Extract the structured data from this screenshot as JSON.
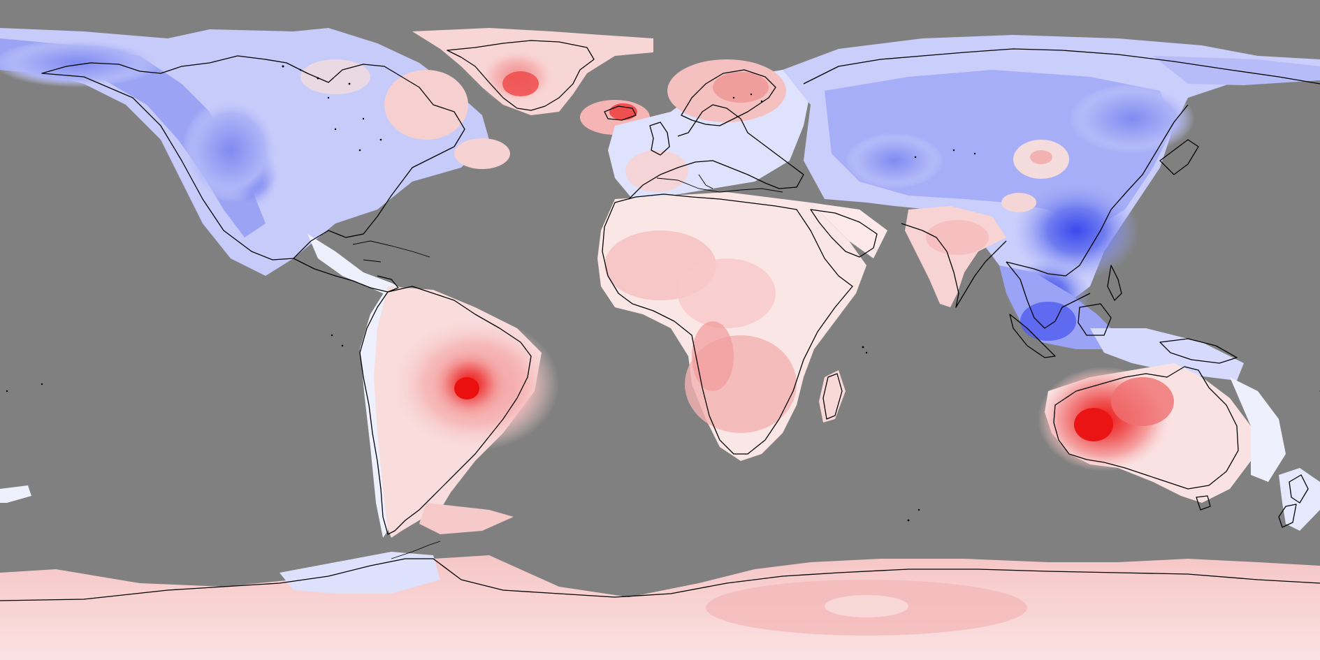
{
  "map": {
    "projection": "equirectangular",
    "view": "world",
    "ocean_color": "#808080",
    "coastline_color": "#000000",
    "palette": {
      "strong_cool": "#3f4ff0",
      "mid_cool": "#8c96f2",
      "light_cool": "#ccd1fb",
      "neutral": "#fdf1f1",
      "light_warm": "#f8c8c8",
      "mid_warm": "#f28888",
      "strong_warm": "#ec1e1e"
    },
    "field_description_hidden": true
  },
  "regions": [
    {
      "name": "north-america",
      "tendency": "cool"
    },
    {
      "name": "greenland",
      "tendency": "warm"
    },
    {
      "name": "south-america",
      "tendency": "warm",
      "hotspot": "central-brazil"
    },
    {
      "name": "africa",
      "tendency": "warm"
    },
    {
      "name": "europe",
      "tendency": "mixed"
    },
    {
      "name": "asia",
      "tendency": "cool"
    },
    {
      "name": "india",
      "tendency": "warm"
    },
    {
      "name": "southeast-asia",
      "tendency": "cool"
    },
    {
      "name": "australia",
      "tendency": "warm",
      "hotspot": "western-australia"
    },
    {
      "name": "new-zealand",
      "tendency": "cool"
    },
    {
      "name": "antarctica",
      "tendency": "warm"
    }
  ]
}
